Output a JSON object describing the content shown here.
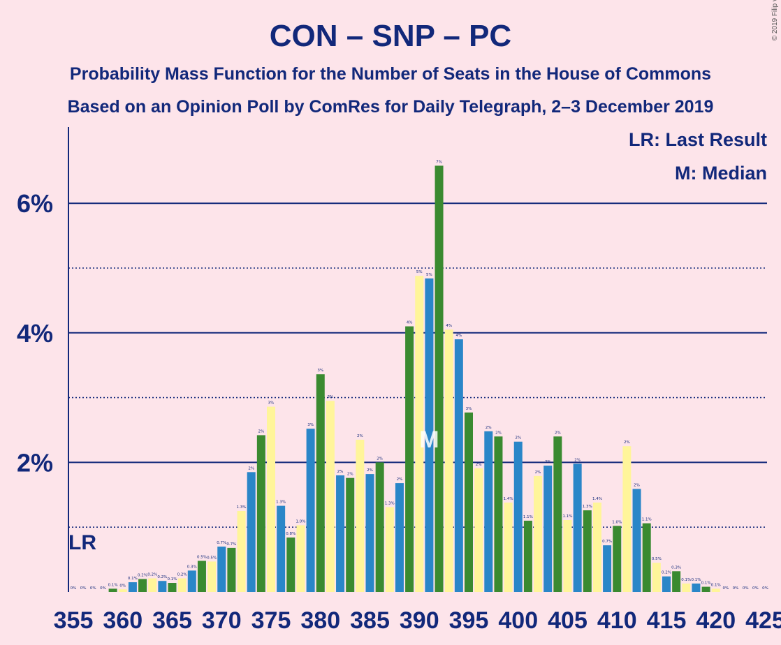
{
  "colors": {
    "background": "#fde4ea",
    "text": "#12287a",
    "grid": "#12287a",
    "series": [
      "#2a86c8",
      "#3a8a30",
      "#fff59a"
    ]
  },
  "chart_data": {
    "type": "bar",
    "title": "CON – SNP – PC",
    "subtitle_1": "Probability Mass Function for the Number of Seats in the House of Commons",
    "subtitle_2": "Based on an Opinion Poll by ComRes for Daily Telegraph, 2–3 December 2019",
    "copyright": "© 2019 Filip van Laenen",
    "legend": [
      "LR: Last Result",
      "M: Median"
    ],
    "last_result_marker": "LR",
    "last_result_seat": 355,
    "median_marker": "M",
    "median_seat": 391,
    "xlim": [
      355,
      425
    ],
    "ylim": [
      0,
      7
    ],
    "y_ticks": [
      2,
      4,
      6
    ],
    "y_tick_labels": [
      "2%",
      "4%",
      "6%"
    ],
    "x_tick_labels": [
      "355",
      "360",
      "365",
      "370",
      "375",
      "380",
      "385",
      "390",
      "395",
      "400",
      "405",
      "410",
      "415",
      "420",
      "425"
    ],
    "x_ticks": [
      355,
      360,
      365,
      370,
      375,
      380,
      385,
      390,
      395,
      400,
      405,
      410,
      415,
      420,
      425
    ],
    "grid_solid": [
      2,
      4,
      6
    ],
    "grid_dotted": [
      1,
      3,
      5
    ],
    "seats": [
      355,
      356,
      357,
      358,
      359,
      360,
      361,
      362,
      363,
      364,
      365,
      366,
      367,
      368,
      369,
      370,
      371,
      372,
      373,
      374,
      375,
      376,
      377,
      378,
      379,
      380,
      381,
      382,
      383,
      384,
      385,
      386,
      387,
      388,
      389,
      390,
      391,
      392,
      393,
      394,
      395,
      396,
      397,
      398,
      399,
      400,
      401,
      402,
      403,
      404,
      405,
      406,
      407,
      408,
      409,
      410,
      411,
      412,
      413,
      414,
      415,
      416,
      417,
      418,
      419,
      420,
      421,
      422,
      423,
      424,
      425
    ],
    "values": [
      0,
      0,
      0,
      0,
      0.05,
      0.04,
      0.15,
      0.2,
      0.21,
      0.17,
      0.14,
      0.21,
      0.33,
      0.48,
      0.47,
      0.7,
      0.68,
      1.25,
      1.85,
      2.42,
      2.86,
      1.33,
      0.84,
      1.03,
      2.52,
      3.36,
      2.95,
      1.8,
      1.76,
      2.35,
      1.82,
      2.0,
      1.31,
      1.68,
      4.1,
      4.88,
      4.84,
      6.58,
      4.05,
      3.9,
      2.77,
      1.91,
      2.48,
      2.4,
      1.38,
      2.32,
      1.1,
      1.79,
      1.95,
      2.4,
      1.11,
      1.98,
      1.26,
      1.38,
      0.72,
      1.02,
      2.25,
      1.59,
      1.06,
      0.45,
      0.24,
      0.32,
      0.13,
      0.13,
      0.08,
      0.05,
      0,
      0,
      0,
      0,
      0
    ],
    "value_labels": [
      "0%",
      "0%",
      "0%",
      "0%",
      "0.1%",
      "0%",
      "0.1%",
      "0.2%",
      "0.2%",
      "0.2%",
      "0.1%",
      "0.2%",
      "0.3%",
      "0.5%",
      "0.5%",
      "0.7%",
      "0.7%",
      "1.3%",
      "2%",
      "2%",
      "3%",
      "1.3%",
      "0.8%",
      "1.0%",
      "3%",
      "3%",
      "3%",
      "2%",
      "2%",
      "2%",
      "2%",
      "2%",
      "1.3%",
      "2%",
      "4%",
      "5%",
      "5%",
      "7%",
      "4%",
      "4%",
      "3%",
      "2%",
      "2%",
      "2%",
      "1.4%",
      "2%",
      "1.1%",
      "2%",
      "2%",
      "2%",
      "1.1%",
      "2%",
      "1.3%",
      "1.4%",
      "0.7%",
      "1.0%",
      "2%",
      "2%",
      "1.1%",
      "0.5%",
      "0.2%",
      "0.3%",
      "0.1%",
      "0.1%",
      "0.1%",
      "0.1%",
      "0%",
      "0%",
      "0%",
      "0%",
      "0%"
    ]
  }
}
